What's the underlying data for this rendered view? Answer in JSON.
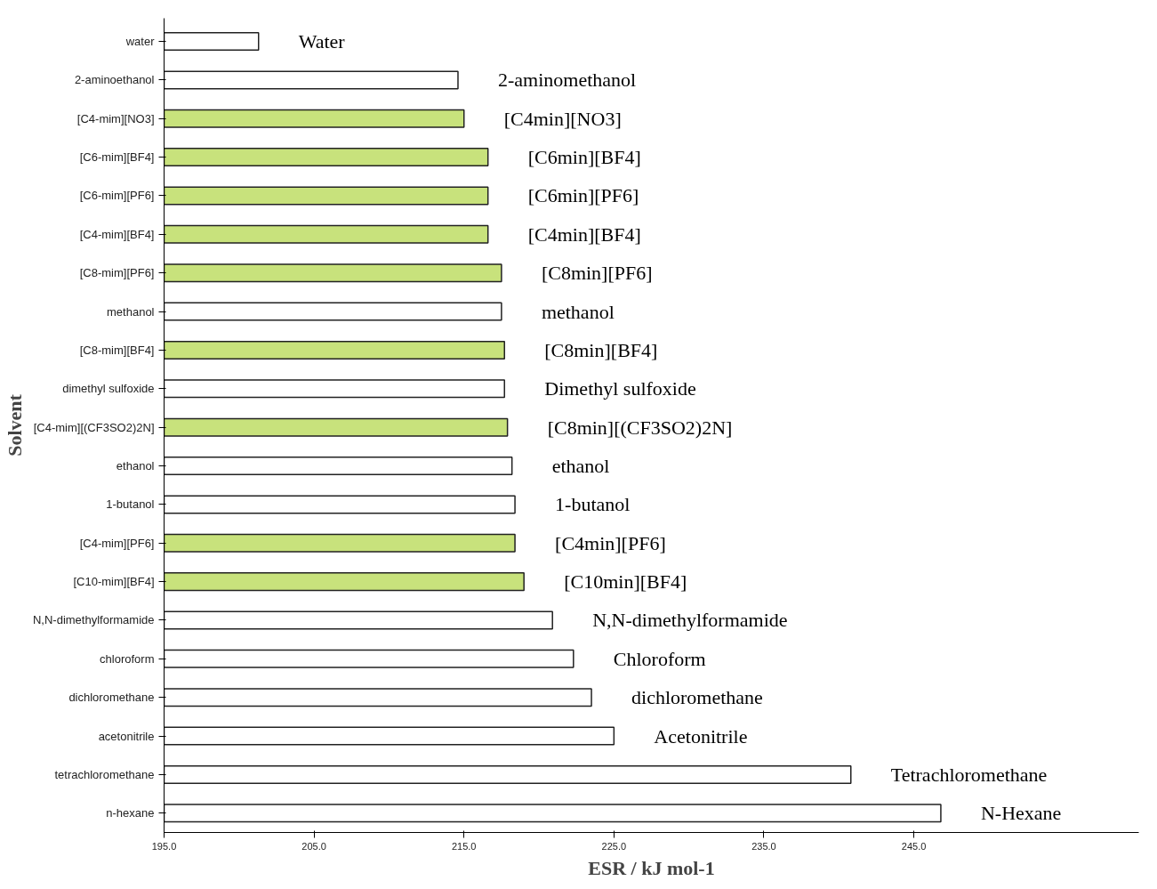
{
  "chart_data": {
    "type": "bar",
    "orientation": "horizontal",
    "xlabel": "ESR / kJ mol-1",
    "ylabel": "Solvent",
    "categories": [
      "water",
      "2-aminoethanol",
      "[C4-mim][NO3]",
      "[C6-mim][BF4]",
      "[C6-mim][PF6]",
      "[C4-mim][BF4]",
      "[C8-mim][PF6]",
      "methanol",
      "[C8-mim][BF4]",
      "dimethyl sulfoxide",
      "[C4-mim][(CF3SO2)2N]",
      "ethanol",
      "1-butanol",
      "[C4-mim][PF6]",
      "[C10-mim][BF4]",
      "N,N-dimethylformamide",
      "chloroform",
      "dichloromethane",
      "acetonitrile",
      "tetrachloromethane",
      "n-hexane"
    ],
    "values": [
      201.3,
      214.6,
      215.0,
      216.6,
      216.6,
      216.6,
      217.5,
      217.5,
      217.7,
      217.7,
      217.9,
      218.2,
      218.4,
      218.4,
      219.0,
      220.9,
      222.3,
      223.5,
      225.0,
      240.8,
      246.8
    ],
    "colors": [
      "#ffffff",
      "#ffffff",
      "#c8e27c",
      "#c8e27c",
      "#c8e27c",
      "#c8e27c",
      "#c8e27c",
      "#ffffff",
      "#c8e27c",
      "#ffffff",
      "#c8e27c",
      "#ffffff",
      "#ffffff",
      "#c8e27c",
      "#c8e27c",
      "#ffffff",
      "#ffffff",
      "#ffffff",
      "#ffffff",
      "#ffffff",
      "#ffffff"
    ],
    "xlim": [
      195,
      260
    ],
    "xticks": [
      {
        "value": 195,
        "label": "195.0"
      },
      {
        "value": 205,
        "label": "205.0"
      },
      {
        "value": 215,
        "label": "215.0"
      },
      {
        "value": 225,
        "label": "225.0"
      },
      {
        "value": 235,
        "label": "235.0"
      },
      {
        "value": 245,
        "label": "245.0"
      }
    ],
    "grid": false,
    "annotations": [
      "Water",
      "2-aminomethanol",
      "[C4min][NO3]",
      "[C6min][BF4]",
      "[C6min][PF6]",
      "[C4min][BF4]",
      "[C8min][PF6]",
      "methanol",
      "[C8min][BF4]",
      "Dimethyl sulfoxide",
      "[C8min][(CF3SO2)2N]",
      "ethanol",
      "1-butanol",
      "[C4min][PF6]",
      "[C10min][BF4]",
      "N,N-dimethylformamide",
      "Chloroform",
      "dichloromethane",
      "Acetonitrile",
      "Tetrachloromethane",
      "N-Hexane"
    ]
  }
}
